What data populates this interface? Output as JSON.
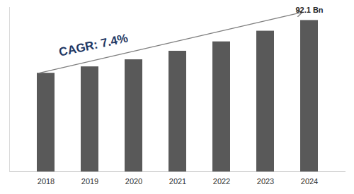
{
  "chart_data": {
    "type": "bar",
    "categories": [
      "2018",
      "2019",
      "2020",
      "2021",
      "2022",
      "2023",
      "2024"
    ],
    "values": [
      60.0,
      63.9,
      68.2,
      73.4,
      79.1,
      85.6,
      92.1
    ],
    "value_labels": [
      null,
      null,
      null,
      null,
      null,
      null,
      "92.1 Bn"
    ],
    "data_labels": true,
    "color": "#595959",
    "ylim": [
      0,
      100
    ],
    "yticks": [],
    "tick_labels": "x",
    "grid": false,
    "annotations": [
      {
        "text": "CAGR: 7.4%"
      }
    ]
  }
}
